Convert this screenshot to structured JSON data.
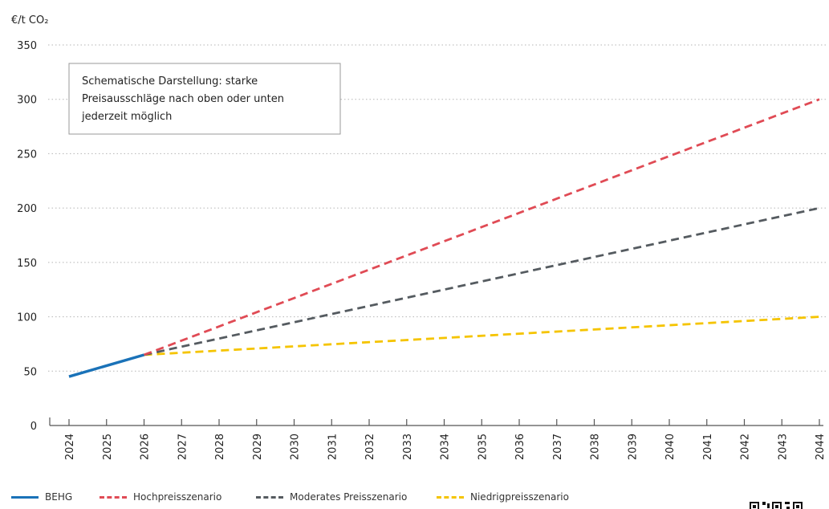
{
  "chart_data": {
    "type": "line",
    "ylabel": "€/t CO₂",
    "ylim": [
      0,
      350
    ],
    "yticks": [
      0,
      50,
      100,
      150,
      200,
      250,
      300,
      350
    ],
    "x": [
      2024,
      2025,
      2026,
      2027,
      2028,
      2029,
      2030,
      2031,
      2032,
      2033,
      2034,
      2035,
      2036,
      2037,
      2038,
      2039,
      2040,
      2041,
      2042,
      2043,
      2044
    ],
    "grid": true,
    "annotation": "Schematische Darstellung: starke Preisausschläge nach oben oder unten jederzeit möglich",
    "series": [
      {
        "name": "BEHG",
        "style": "solid",
        "color": "#1a72b8",
        "x": [
          2024,
          2026
        ],
        "values": [
          45,
          65
        ]
      },
      {
        "name": "Hochpreisszenario",
        "style": "dashed",
        "color": "#e04b55",
        "x": [
          2026,
          2044
        ],
        "values": [
          65,
          300
        ]
      },
      {
        "name": "Moderates Preisszenario",
        "style": "dashed",
        "color": "#555b60",
        "x": [
          2026,
          2044
        ],
        "values": [
          65,
          200
        ]
      },
      {
        "name": "Niedrigpreisszenario",
        "style": "dashed",
        "color": "#f5c400",
        "x": [
          2026,
          2044
        ],
        "values": [
          65,
          100
        ]
      }
    ]
  }
}
